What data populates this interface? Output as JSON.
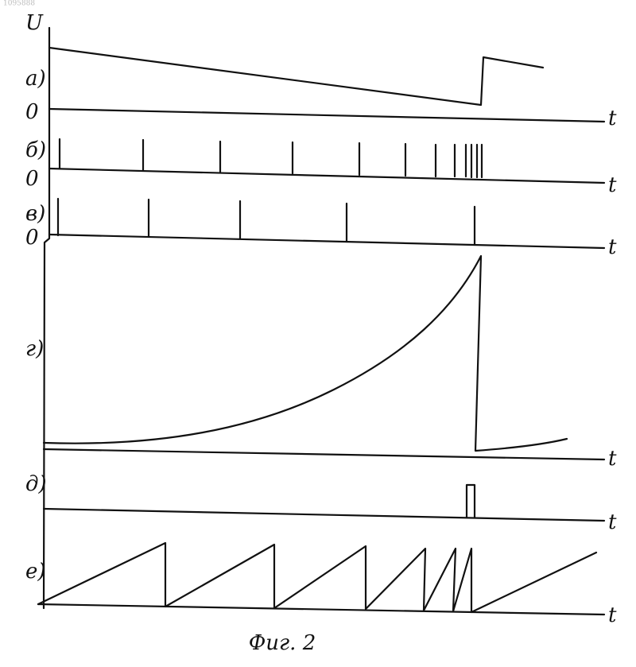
{
  "header": {
    "number": "1095888",
    "axis_label": "U"
  },
  "panels": [
    {
      "label": "а)",
      "zero": "0",
      "axis": "t"
    },
    {
      "label": "б)",
      "zero": "0",
      "axis": "t"
    },
    {
      "label": "в)",
      "zero": "0",
      "axis": "t"
    },
    {
      "label": "г)",
      "axis": "t"
    },
    {
      "label": "д)",
      "axis": "t"
    },
    {
      "label": "е)",
      "axis": "t"
    }
  ],
  "caption": "Фиг. 2"
}
